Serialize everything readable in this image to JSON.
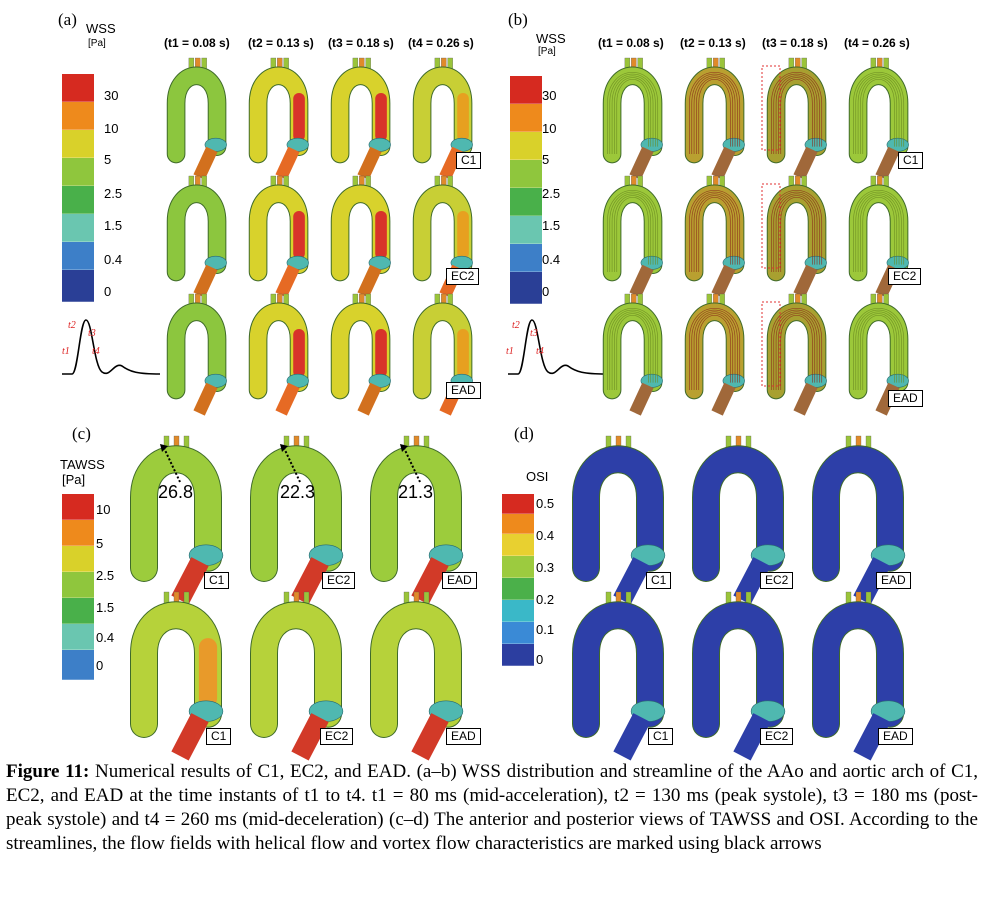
{
  "panels": {
    "a": {
      "label": "(a)",
      "cbar_title": "WSS",
      "cbar_unit": "[Pa]",
      "ticks": [
        "30",
        "10",
        "5",
        "2.5",
        "1.5",
        "0.4",
        "0"
      ]
    },
    "b": {
      "label": "(b)",
      "cbar_title": "WSS",
      "cbar_unit": "[Pa]",
      "ticks": [
        "30",
        "10",
        "5",
        "2.5",
        "1.5",
        "0.4",
        "0"
      ]
    },
    "c": {
      "label": "(c)",
      "cbar_title": "TAWSS",
      "cbar_unit": "[Pa]",
      "ticks": [
        "10",
        "5",
        "2.5",
        "1.5",
        "0.4",
        "0"
      ],
      "values": [
        "26.8",
        "22.3",
        "21.3"
      ]
    },
    "d": {
      "label": "(d)",
      "cbar_title": "OSI",
      "ticks": [
        "0.5",
        "0.4",
        "0.3",
        "0.2",
        "0.1",
        "0"
      ]
    }
  },
  "time_headers": [
    "(t1 = 0.08 s)",
    "(t2 = 0.13 s)",
    "(t3 = 0.18 s)",
    "(t4 = 0.26 s)"
  ],
  "row_tags": [
    "C1",
    "EC2",
    "EAD"
  ],
  "waveform_labels": [
    "t2",
    "t3",
    "t1",
    "t4"
  ],
  "caption": {
    "lead": "Figure 11:",
    "text": " Numerical results of C1, EC2, and EAD. (a–b) WSS distribution and streamline of the AAo and aortic arch of C1, EC2, and EAD at the time instants of t1 to t4. t1 = 80 ms (mid-acceleration), t2 = 130 ms (peak systole), t3 = 180 ms (post-peak systole) and t4 = 260 ms (mid-deceleration) (c–d) The anterior and posterior views of TAWSS and OSI. According to the streamlines, the flow fields with helical flow and vortex flow characteristics are marked using black arrows"
  },
  "colors": {
    "wss_scale": [
      "#d62a20",
      "#ee8a1c",
      "#d9d12a",
      "#8fc63d",
      "#49b04a",
      "#6ac6b0",
      "#3d7fc8",
      "#2a3f96"
    ],
    "osi_scale": [
      "#d62a20",
      "#ee8a1c",
      "#e8d030",
      "#9ccb3f",
      "#4bb04a",
      "#3ab8c8",
      "#3a8ad6",
      "#2c3ea0"
    ],
    "aorta_green": "#8cc63e",
    "aorta_yellow": "#d8d22c",
    "aorta_red": "#d8332a",
    "aorta_blue": "#2d3fa8"
  }
}
